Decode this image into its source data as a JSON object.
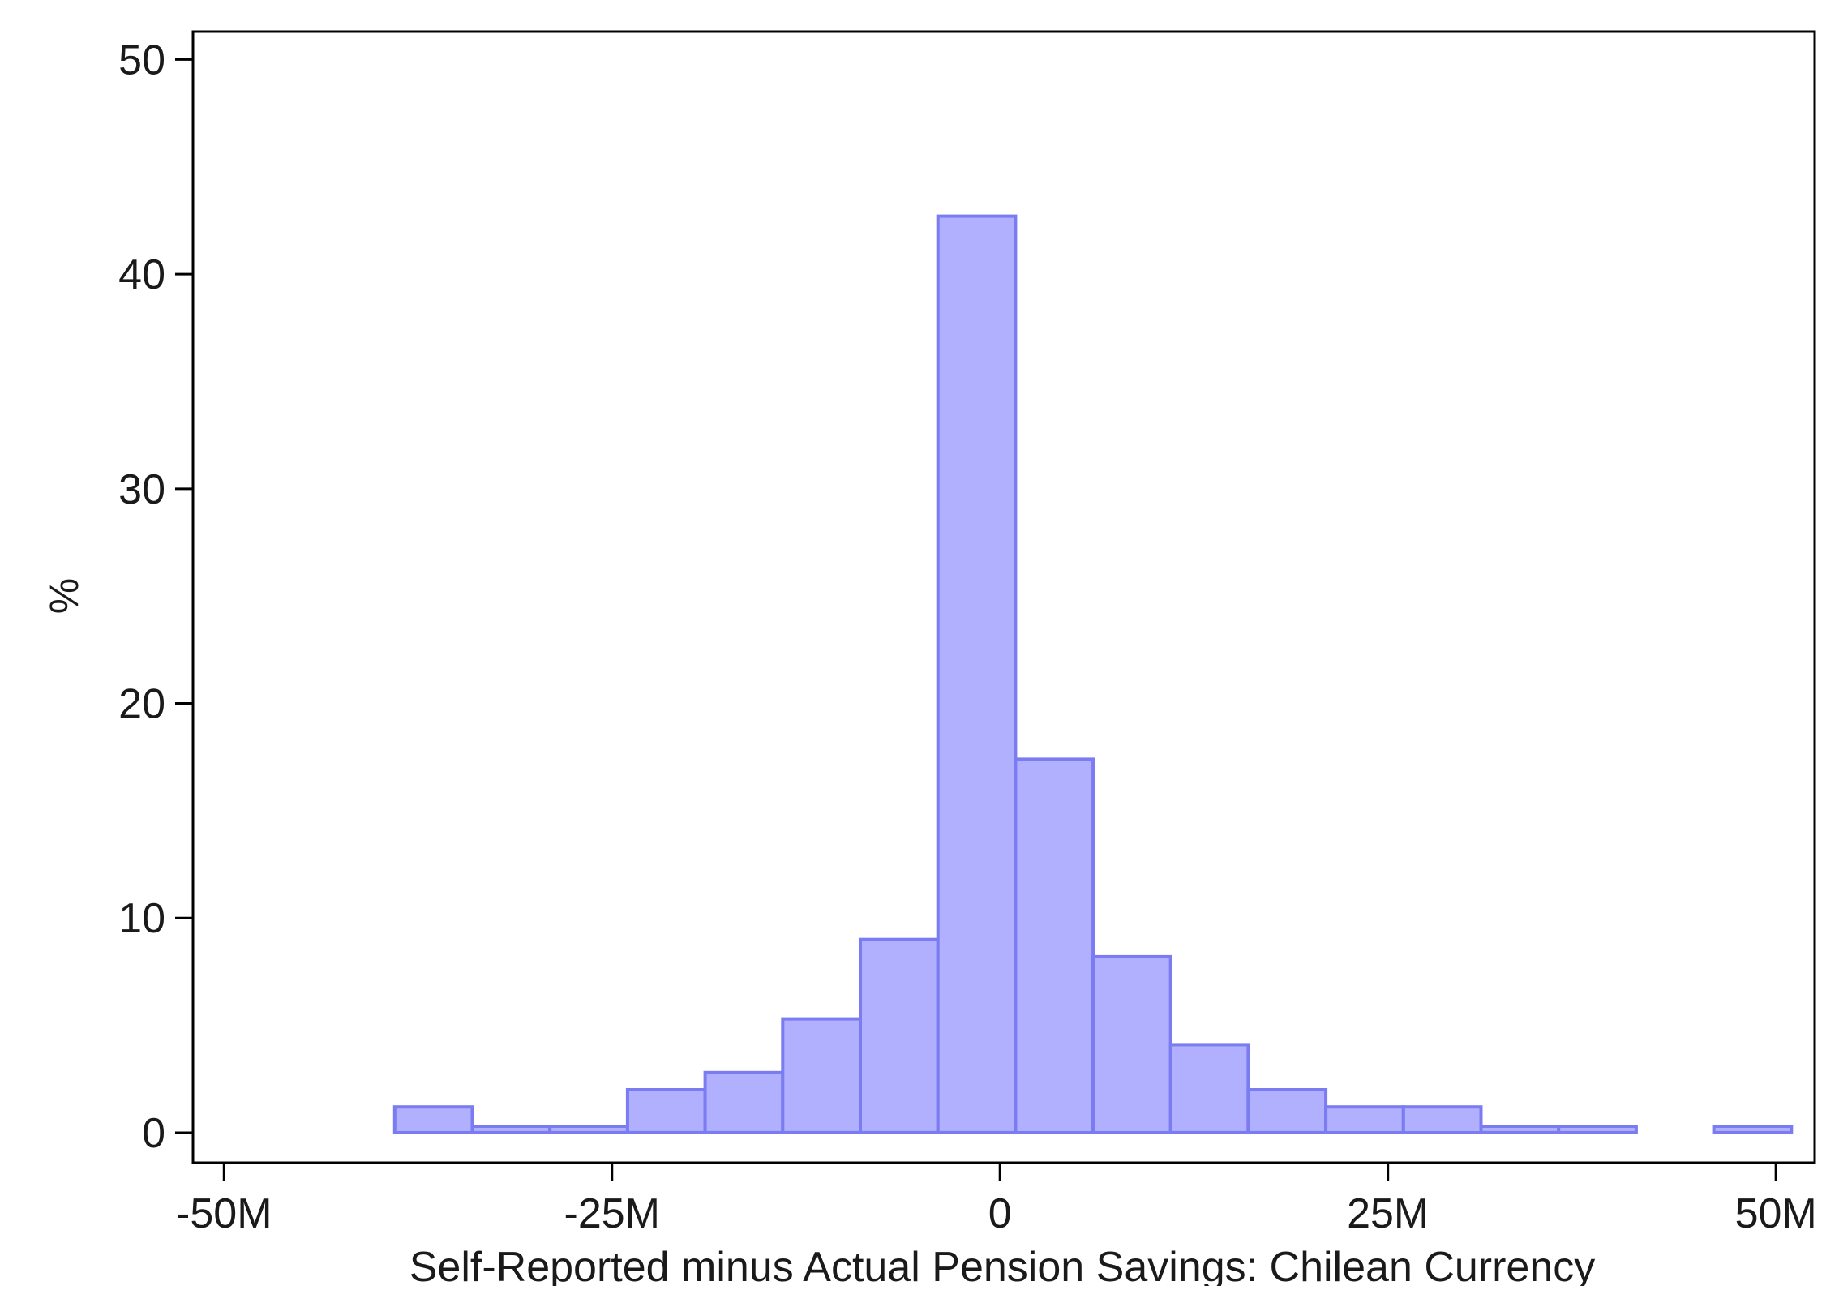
{
  "chart_data": {
    "type": "bar",
    "title": "",
    "xlabel": "Self-Reported minus Actual Pension Savings: Chilean Currency",
    "ylabel": "%",
    "xlim": [
      -52,
      52.5
    ],
    "ylim": [
      -1.4,
      51.3
    ],
    "x_ticks": [
      {
        "value": -50,
        "label": "-50M"
      },
      {
        "value": -25,
        "label": "-25M"
      },
      {
        "value": 0,
        "label": "0"
      },
      {
        "value": 25,
        "label": "25M"
      },
      {
        "value": 50,
        "label": "50M"
      }
    ],
    "y_ticks": [
      {
        "value": 0,
        "label": "0"
      },
      {
        "value": 10,
        "label": "10"
      },
      {
        "value": 20,
        "label": "20"
      },
      {
        "value": 30,
        "label": "30"
      },
      {
        "value": 40,
        "label": "40"
      },
      {
        "value": 50,
        "label": "50"
      }
    ],
    "grid": false,
    "bar_fill": "#b0b0ff",
    "bar_stroke": "#7b7bf2",
    "bins": [
      {
        "start": -39.0,
        "end": -34.0,
        "value": 1.2
      },
      {
        "start": -34.0,
        "end": -29.0,
        "value": 0.3
      },
      {
        "start": -29.0,
        "end": -24.0,
        "value": 0.3
      },
      {
        "start": -24.0,
        "end": -19.0,
        "value": 2.0
      },
      {
        "start": -19.0,
        "end": -14.0,
        "value": 2.8
      },
      {
        "start": -14.0,
        "end": -9.0,
        "value": 5.3
      },
      {
        "start": -9.0,
        "end": -4.0,
        "value": 9.0
      },
      {
        "start": -4.0,
        "end": 1.0,
        "value": 42.7
      },
      {
        "start": 1.0,
        "end": 6.0,
        "value": 17.4
      },
      {
        "start": 6.0,
        "end": 11.0,
        "value": 8.2
      },
      {
        "start": 11.0,
        "end": 16.0,
        "value": 4.1
      },
      {
        "start": 16.0,
        "end": 21.0,
        "value": 2.0
      },
      {
        "start": 21.0,
        "end": 26.0,
        "value": 1.2
      },
      {
        "start": 26.0,
        "end": 31.0,
        "value": 1.2
      },
      {
        "start": 31.0,
        "end": 36.0,
        "value": 0.3
      },
      {
        "start": 36.0,
        "end": 41.0,
        "value": 0.3
      },
      {
        "start": 46.0,
        "end": 51.0,
        "value": 0.3
      }
    ]
  }
}
